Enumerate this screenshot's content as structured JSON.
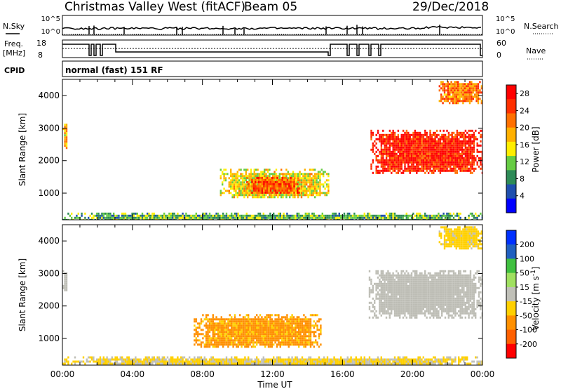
{
  "header": {
    "title": "Christmas Valley West (fitACF)",
    "beam": "Beam 05",
    "date": "29/Dec/2018"
  },
  "strip": {
    "nsky_label": "N.Sky",
    "nsearch_label": "N.Search",
    "freq_label": "Freq.",
    "freq_unit": "[MHz]",
    "nave_label": "Nave",
    "cpid_label": "CPID",
    "cpid_value": "normal (fast) 151 RF",
    "noise_ticks": [
      "10^5",
      "10^0"
    ],
    "freq_ticks": [
      18,
      8
    ],
    "nave_ticks": [
      60,
      0
    ]
  },
  "colors": {
    "power": [
      "#0000ff",
      "#1f4fae",
      "#2e8b57",
      "#66cc44",
      "#ffee00",
      "#ffb000",
      "#ff7000",
      "#ff3000",
      "#ff0000"
    ],
    "velocity": [
      "#ff0000",
      "#ff6000",
      "#ff9000",
      "#ffd000",
      "#c0c0b8",
      "#a0e060",
      "#40c040",
      "#2060c0",
      "#0030ff"
    ],
    "ground_scatter": "#bdbdb5"
  },
  "chart_data": [
    {
      "type": "heatmap",
      "title": "",
      "xlabel": "Time UT",
      "ylabel": "Slant Range [km]",
      "xlim": [
        0,
        24
      ],
      "ylim": [
        180,
        4500
      ],
      "xticks": [
        "00:00",
        "04:00",
        "08:00",
        "12:00",
        "16:00",
        "20:00",
        "00:00"
      ],
      "yticks": [
        1000,
        2000,
        3000,
        4000
      ],
      "colorbar": {
        "label": "Power [dB]",
        "ticks": [
          4,
          8,
          12,
          16,
          20,
          24,
          28
        ],
        "range": [
          0,
          30
        ]
      },
      "regions": [
        {
          "t": [
            9.0,
            15.2
          ],
          "r": [
            850,
            1750
          ],
          "value": 16
        },
        {
          "t": [
            10.5,
            13.5
          ],
          "r": [
            1000,
            1500
          ],
          "value": 24
        },
        {
          "t": [
            17.6,
            24.0
          ],
          "r": [
            1600,
            2950
          ],
          "value": 28
        },
        {
          "t": [
            0.0,
            0.25
          ],
          "r": [
            2400,
            3200
          ],
          "value": 18
        },
        {
          "t": [
            21.5,
            24.0
          ],
          "r": [
            3800,
            4450
          ],
          "value": 22
        },
        {
          "t": [
            0.0,
            24.0
          ],
          "r": [
            180,
            400
          ],
          "value": 10
        }
      ]
    },
    {
      "type": "heatmap",
      "title": "",
      "xlabel": "Time UT",
      "ylabel": "Slant Range [km]",
      "xlim": [
        0,
        24
      ],
      "ylim": [
        180,
        4500
      ],
      "xticks": [
        "00:00",
        "04:00",
        "08:00",
        "12:00",
        "16:00",
        "20:00",
        "00:00"
      ],
      "yticks": [
        1000,
        2000,
        3000,
        4000
      ],
      "colorbar": {
        "label": "Velocity [m s-1]",
        "ticks": [
          200,
          100,
          50,
          15,
          -15,
          -50,
          -100,
          -200
        ]
      },
      "regions": [
        {
          "t": [
            7.5,
            14.8
          ],
          "r": [
            750,
            1750
          ],
          "value": -60
        },
        {
          "t": [
            17.5,
            24.0
          ],
          "r": [
            1650,
            3100
          ],
          "value": "ground scatter"
        },
        {
          "t": [
            0.0,
            0.25
          ],
          "r": [
            2400,
            3100
          ],
          "value": "ground scatter"
        },
        {
          "t": [
            21.5,
            24.0
          ],
          "r": [
            3800,
            4450
          ],
          "value": -30
        },
        {
          "t": [
            0.0,
            24.0
          ],
          "r": [
            180,
            450
          ],
          "value": -20
        }
      ]
    }
  ]
}
